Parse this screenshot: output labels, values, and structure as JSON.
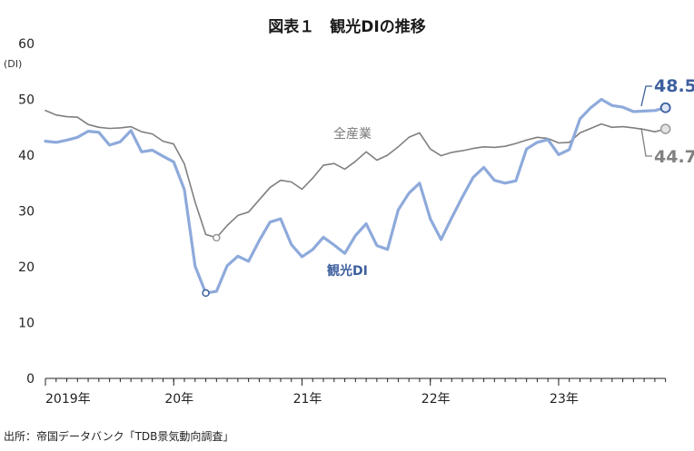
{
  "chart_data": {
    "type": "line",
    "title": "図表１　観光DIの推移",
    "ylabel": "(DI)",
    "ylim": [
      0,
      60
    ],
    "yticks": [
      0,
      10,
      20,
      30,
      40,
      50,
      60
    ],
    "xtick_labels": [
      "2019年",
      "20年",
      "21年",
      "22年",
      "23年"
    ],
    "x_start": "2019-01",
    "x_end": "2023-09",
    "series": [
      {
        "name": "全産業",
        "color": "#7f7f7f",
        "values": [
          48.0,
          47.2,
          46.9,
          46.8,
          45.5,
          45.0,
          44.8,
          44.9,
          45.1,
          44.2,
          43.8,
          42.5,
          42.0,
          38.4,
          31.6,
          25.8,
          25.2,
          27.4,
          29.2,
          29.8,
          32.0,
          34.2,
          35.5,
          35.2,
          33.9,
          35.9,
          38.2,
          38.5,
          37.5,
          38.9,
          40.6,
          39.1,
          40.0,
          41.5,
          43.2,
          44.0,
          41.1,
          39.9,
          40.5,
          40.8,
          41.2,
          41.5,
          41.4,
          41.6,
          42.1,
          42.7,
          43.2,
          43.0,
          42.2,
          42.3,
          44.0,
          44.8,
          45.6,
          45.0,
          45.1,
          44.9,
          44.6,
          44.2,
          44.7
        ]
      },
      {
        "name": "観光DI",
        "color": "#8eaadb",
        "values": [
          42.5,
          42.3,
          42.7,
          43.2,
          44.3,
          44.1,
          41.8,
          42.4,
          44.4,
          40.6,
          40.9,
          39.8,
          38.8,
          33.8,
          20.1,
          15.3,
          15.6,
          20.2,
          21.9,
          21.0,
          24.7,
          28.0,
          28.6,
          24.0,
          21.8,
          23.1,
          25.3,
          23.9,
          22.4,
          25.6,
          27.7,
          23.8,
          23.1,
          30.2,
          33.2,
          35.0,
          28.6,
          24.9,
          28.8,
          32.5,
          36.0,
          37.8,
          35.5,
          35.0,
          35.4,
          41.1,
          42.3,
          42.8,
          40.1,
          41.0,
          46.5,
          48.5,
          50.0,
          48.9,
          48.6,
          47.8,
          47.9,
          48.0,
          48.5
        ]
      }
    ],
    "annotations": {
      "all_industry_min": 25.2,
      "tourism_min": 15.3,
      "tourism_end": "48.5",
      "all_industry_end": "44.7"
    },
    "source": "出所：帝国データバンク「TDB景気動向調査」"
  }
}
